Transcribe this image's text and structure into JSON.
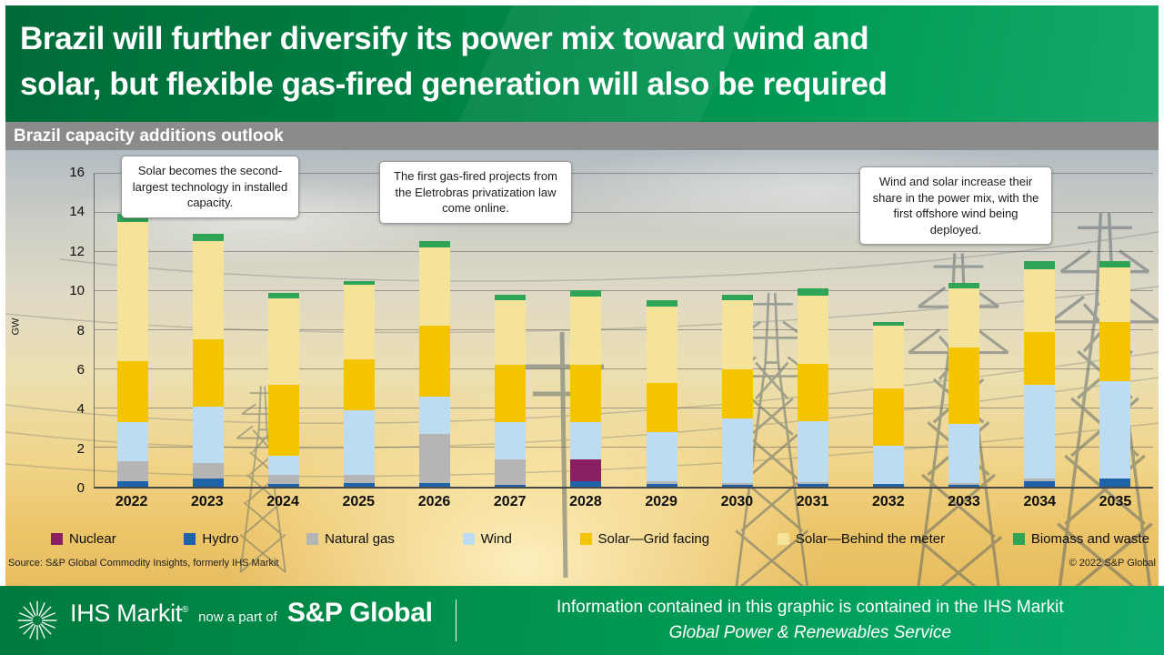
{
  "header": {
    "title_line1": "Brazil will further diversify its power mix toward wind and",
    "title_line2": "solar, but flexible gas-fired generation will also be required"
  },
  "subheader": {
    "title": "Brazil capacity additions outlook"
  },
  "chart_data": {
    "type": "bar",
    "stacked": true,
    "title": "Brazil capacity additions outlook",
    "ylabel": "GW",
    "ylim": [
      0,
      16
    ],
    "ytick_step": 2,
    "grid": true,
    "legend_position": "bottom",
    "categories": [
      "2022",
      "2023",
      "2024",
      "2025",
      "2026",
      "2027",
      "2028",
      "2029",
      "2030",
      "2031",
      "2032",
      "2033",
      "2034",
      "2035"
    ],
    "series": [
      {
        "name": "Hydro",
        "color": "#1e62aa",
        "values": [
          0.3,
          0.4,
          0.15,
          0.2,
          0.2,
          0.1,
          0.3,
          0.15,
          0.1,
          0.15,
          0.15,
          0.1,
          0.3,
          0.4
        ]
      },
      {
        "name": "Nuclear",
        "color": "#8a1e63",
        "values": [
          0,
          0,
          0,
          0,
          0,
          0,
          1.1,
          0,
          0,
          0,
          0,
          0,
          0,
          0
        ]
      },
      {
        "name": "Natural gas",
        "color": "#b5b5b5",
        "values": [
          1.0,
          0.8,
          0.45,
          0.4,
          2.5,
          1.3,
          0,
          0.15,
          0.1,
          0.1,
          0,
          0.1,
          0.1,
          0
        ]
      },
      {
        "name": "Wind",
        "color": "#bedcf1",
        "values": [
          2.0,
          2.9,
          1.0,
          3.3,
          1.9,
          1.9,
          1.9,
          2.5,
          3.3,
          3.1,
          1.95,
          3.0,
          4.8,
          5.0
        ]
      },
      {
        "name": "Solar—Grid facing",
        "color": "#f5c400",
        "values": [
          3.1,
          3.4,
          3.6,
          2.6,
          3.6,
          2.9,
          2.9,
          2.5,
          2.5,
          2.9,
          2.9,
          3.9,
          2.7,
          3.0
        ]
      },
      {
        "name": "Solar—Behind the meter",
        "color": "#f5e39a",
        "values": [
          7.1,
          5.0,
          4.4,
          3.8,
          4.0,
          3.3,
          3.5,
          3.9,
          3.5,
          3.5,
          3.2,
          3.0,
          3.2,
          2.8
        ]
      },
      {
        "name": "Biomass and waste",
        "color": "#2fa356",
        "values": [
          0.4,
          0.4,
          0.3,
          0.2,
          0.3,
          0.3,
          0.3,
          0.3,
          0.3,
          0.35,
          0.2,
          0.3,
          0.4,
          0.3
        ]
      }
    ],
    "legend_items": [
      {
        "name": "Nuclear",
        "color": "#8a1e63"
      },
      {
        "name": "Hydro",
        "color": "#1e62aa"
      },
      {
        "name": "Natural gas",
        "color": "#b5b5b5"
      },
      {
        "name": "Wind",
        "color": "#bedcf1"
      },
      {
        "name": "Solar—Grid facing",
        "color": "#f5c400"
      },
      {
        "name": "Solar—Behind the meter",
        "color": "#f5e39a"
      },
      {
        "name": "Biomass and waste",
        "color": "#2fa356"
      }
    ],
    "annotations": [
      {
        "text": "Solar becomes the second-largest technology in installed capacity."
      },
      {
        "text": "The first gas-fired projects from the Eletrobras privatization law come online."
      },
      {
        "text": "Wind and solar increase their share in the power mix, with the first offshore wind being deployed."
      }
    ]
  },
  "source": {
    "left": "Source: S&P Global Commodity Insights, formerly IHS Markit",
    "right": "© 2022 S&P Global"
  },
  "footer": {
    "brand": "IHS Markit",
    "registered": "®",
    "tagline": "now a part of",
    "parent_brand": "S&P Global",
    "info_line1": "Information contained in this graphic is contained in the IHS Markit",
    "info_line2": "Global Power & Renewables Service"
  }
}
